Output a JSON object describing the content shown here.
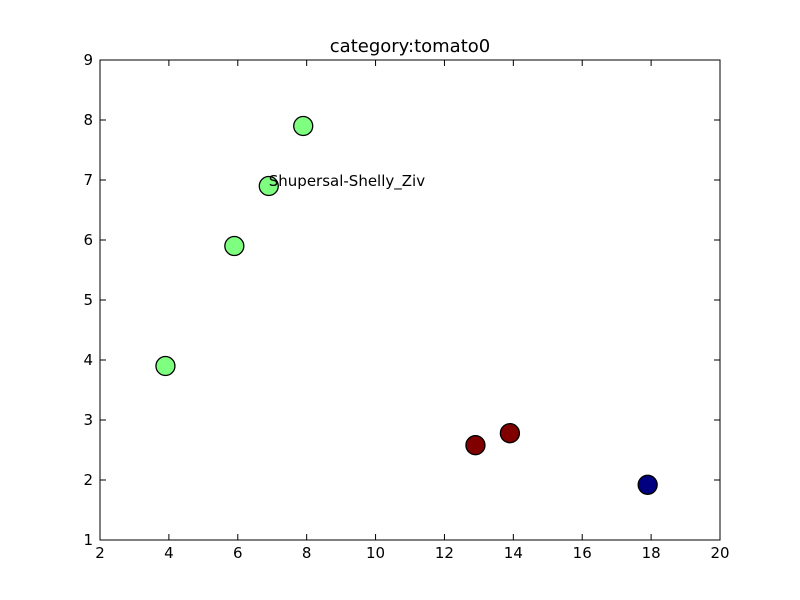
{
  "chart_data": {
    "type": "scatter",
    "title": "category:tomato0",
    "xlabel": "",
    "ylabel": "",
    "xlim": [
      2,
      20
    ],
    "ylim": [
      1,
      9
    ],
    "xticks": [
      2,
      4,
      6,
      8,
      10,
      12,
      14,
      16,
      18,
      20
    ],
    "yticks": [
      1,
      2,
      3,
      4,
      5,
      6,
      7,
      8,
      9
    ],
    "grid": false,
    "points": [
      {
        "x": 7.9,
        "y": 7.9,
        "color": "#7fff7f"
      },
      {
        "x": 6.9,
        "y": 6.9,
        "color": "#7fff7f"
      },
      {
        "x": 5.9,
        "y": 5.9,
        "color": "#7fff7f"
      },
      {
        "x": 3.9,
        "y": 3.9,
        "color": "#7fff7f"
      },
      {
        "x": 13.9,
        "y": 2.78,
        "color": "#800000"
      },
      {
        "x": 12.9,
        "y": 2.58,
        "color": "#800000"
      },
      {
        "x": 17.9,
        "y": 1.92,
        "color": "#000080"
      }
    ],
    "annotations": [
      {
        "text": "Shupersal-Shelly_Ziv",
        "x": 6.9,
        "y": 6.9
      }
    ]
  }
}
